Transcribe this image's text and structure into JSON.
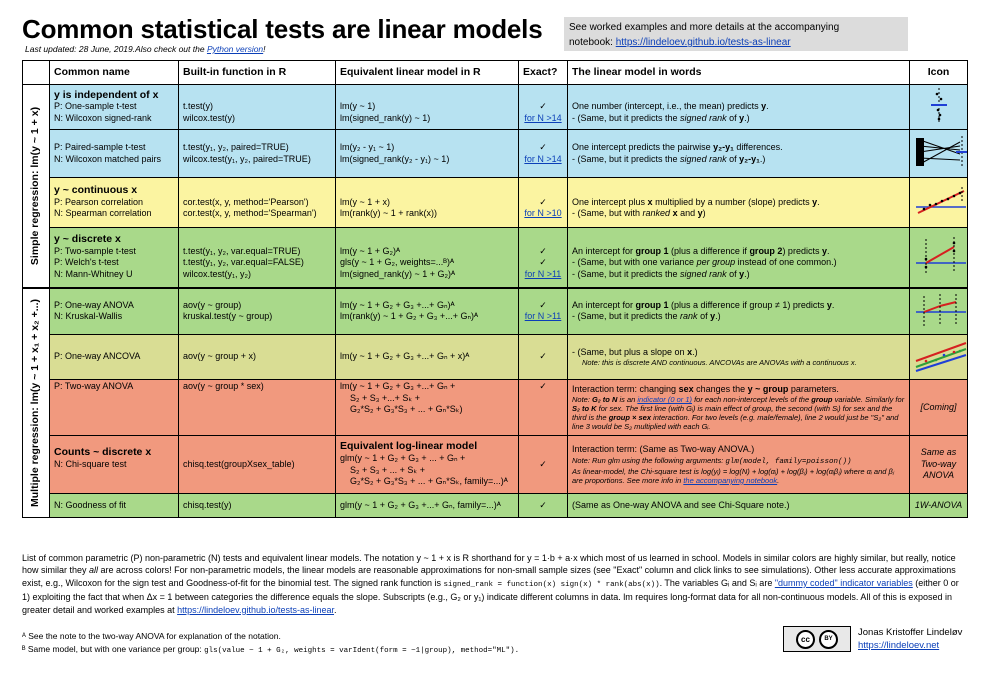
{
  "header": {
    "title": "Common statistical tests are linear models",
    "updated": "Last updated: 28 June, 2019.Also check out the ",
    "python_link": "Python version",
    "updated_end": "!",
    "box_line1": "See worked examples and more details at the accompanying",
    "box_line2": "notebook: ",
    "box_link": "https://lindeloev.github.io/tests-as-linear"
  },
  "columns": {
    "name": "Common name",
    "builtin": "Built-in function in R",
    "equiv": "Equivalent linear model in R",
    "exact": "Exact?",
    "words": "The linear model in words",
    "icon": "Icon"
  },
  "side": {
    "simple": "Simple regression: lm(y ~ 1 + x)",
    "multiple": "Multiple regression: lm(y ~ 1 + x₁ + x₂ +...)"
  },
  "rows": {
    "r1": {
      "title": "y is independent of x",
      "n1": "P: One-sample t-test",
      "n2": "N: Wilcoxon signed-rank",
      "f1": "t.test(y)",
      "f2": "wilcox.test(y)",
      "m1": "lm(y ~ 1)",
      "m2": "lm(signed_rank(y) ~ 1)",
      "e1": "✓",
      "e2": "for N >14",
      "w1a": "One number (intercept, i.e., the mean) predicts ",
      "w1b": "y",
      "w1c": ".",
      "w2a": "- (Same, but it predicts the ",
      "w2b": "signed rank",
      "w2c": " of ",
      "w2d": "y",
      "w2e": ".)"
    },
    "r2": {
      "n1": "P: Paired-sample t-test",
      "n2": "N: Wilcoxon matched pairs",
      "f1": "t.test(y₁, y₂, paired=TRUE)",
      "f2": "wilcox.test(y₁, y₂, paired=TRUE)",
      "m1": "lm(y₂ - y₁ ~ 1)",
      "m2": "lm(signed_rank(y₂ - y₁) ~ 1)",
      "e1": "✓",
      "e2": "for N >14",
      "w1a": "One intercept predicts the pairwise ",
      "w1b": "y₂-y₁",
      "w1c": " differences.",
      "w2a": "- (Same, but it predicts the ",
      "w2b": "signed rank",
      "w2c": " of ",
      "w2d": "y₂-y₁",
      "w2e": ".)"
    },
    "r3": {
      "title": "y ~ continuous x",
      "n1": "P: Pearson correlation",
      "n2": "N: Spearman correlation",
      "f1": "cor.test(x, y, method='Pearson')",
      "f2": "cor.test(x, y, method='Spearman')",
      "m1": "lm(y ~ 1 + x)",
      "m2": "lm(rank(y) ~ 1 + rank(x))",
      "e1": "✓",
      "e2": "for N >10",
      "w1a": "One intercept plus ",
      "w1b": "x",
      "w1c": " multiplied by a number (slope) predicts ",
      "w1d": "y",
      "w1e": ".",
      "w2a": "- (Same, but with ",
      "w2b": "ranked",
      "w2c": " x",
      "w2d": " and ",
      "w2e": "y",
      "w2f": ")"
    },
    "r4": {
      "title": "y ~ discrete x",
      "n1": "P: Two-sample t-test",
      "n2": "P: Welch's t-test",
      "n3": "N: Mann-Whitney U",
      "f1": "t.test(y₁, y₂, var.equal=TRUE)",
      "f2": "t.test(y₁, y₂, var.equal=FALSE)",
      "f3": "wilcox.test(y₁, y₂)",
      "m1": "lm(y ~ 1 + G₂)ᴬ",
      "m2": "gls(y ~ 1 + G₂, weights=...ᴮ)ᴬ",
      "m3": "lm(signed_rank(y) ~ 1 + G₂)ᴬ",
      "e1": "✓",
      "e2": "✓",
      "e3": "for N >11",
      "w1a": "An intercept for ",
      "w1b": "group 1",
      "w1c": " (plus a difference if ",
      "w1d": "group 2",
      "w1e": ") predicts ",
      "w1f": "y",
      "w1g": ".",
      "w2a": "- (Same, but with one variance ",
      "w2b": "per group",
      "w2c": " instead of one common.)",
      "w3a": "- (Same, but it predicts the ",
      "w3b": "signed rank",
      "w3c": " of ",
      "w3d": "y",
      "w3e": ".)"
    },
    "r5": {
      "n1": "P: One-way ANOVA",
      "n2": "N: Kruskal-Wallis",
      "f1": "aov(y ~ group)",
      "f2": "kruskal.test(y ~ group)",
      "m1": "lm(y ~ 1 + G₂ + G₃ +...+ Gₙ)ᴬ",
      "m2": "lm(rank(y) ~ 1 + G₂ + G₃ +...+ Gₙ)ᴬ",
      "e1": "✓",
      "e2": "for N >11",
      "w1a": "An intercept for ",
      "w1b": "group 1",
      "w1c": " (plus a difference if group ≠ 1) predicts ",
      "w1d": "y",
      "w1e": ".",
      "w2a": "- (Same, but it predicts the ",
      "w2b": "rank",
      "w2c": " of ",
      "w2d": "y",
      "w2e": ".)"
    },
    "r6": {
      "n1": "P: One-way ANCOVA",
      "f1": "aov(y ~ group + x)",
      "m1": "lm(y ~ 1 + G₂ + G₃ +...+ Gₙ + x)ᴬ",
      "e1": "✓",
      "w1a": "- (Same, but plus a slope on ",
      "w1b": "x",
      "w1c": ".)",
      "note": "Note: this is discrete AND continuous. ANCOVAs are ANOVAs with a continuous x."
    },
    "r7": {
      "n1": "P: Two-way ANOVA",
      "f1": "aov(y ~ group * sex)",
      "m1": "lm(y ~ 1 + G₂ + G₃ +...+ Gₙ +",
      "m2": "S₂ + S₃ +...+ Sₖ +",
      "m3": "G₂*S₂ + G₃*S₃ + ... + Gₙ*Sₖ)",
      "e1": "✓",
      "w1a": "Interaction term: changing ",
      "w1b": "sex",
      "w1c": " changes the ",
      "w1d": "y ~ group",
      "w1e": " parameters.",
      "na": "Note: ",
      "nb": "G₂ to N",
      "nc": " is an ",
      "nd": "indicator (0 or 1)",
      "ne": " for each non-intercept levels of the ",
      "nf": "group",
      "ng": " variable. Similarly for ",
      "nh": "S₂ to K",
      "ni": " for sex. The first line (with Gᵢ) is main effect of group, the second (with Sᵢ) for sex and the third is the ",
      "nj": "group × sex",
      "nk": " interaction. For two levels (e.g. male/female), line 2 would just be \"S₂\" and line 3 would be S₂ multiplied with each Gᵢ.",
      "icon": "[Coming]"
    },
    "r8": {
      "title": "Counts ~ discrete x",
      "n1": "N: Chi-square test",
      "f1": "chisq.test(groupXsex_table)",
      "mt": "Equivalent log-linear model",
      "m1": "glm(y ~ 1 + G₂ + G₃ + ... + Gₙ +",
      "m2": "S₂ + S₃ + ... + Sₖ +",
      "m3": "G₂*S₂ + G₃*S₃ + ... + Gₙ*Sₖ, family=...)ᴬ",
      "e1": "✓",
      "w1": "Interaction term: (Same as Two-way ANOVA.)",
      "na": "Note: Run glm using the following arguments: ",
      "ncode": "glm(model, family=poisson())",
      "nb": "As linear-model, the Chi-square test is log(yᵢ) = log(N) + log(αᵢ) + log(βⱼ) + log(αᵢβⱼ) where αᵢ and βⱼ are proportions. See more info in ",
      "nlink": "the accompanying notebook",
      "nend": ".",
      "icon": "Same as Two-way ANOVA"
    },
    "r9": {
      "n1": "N: Goodness of fit",
      "f1": "chisq.test(y)",
      "m1": "glm(y ~ 1 + G₂ + G₃ +...+ Gₙ, family=...)ᴬ",
      "e1": "✓",
      "w1": "(Same as One-way ANOVA and see Chi-Square note.)",
      "icon": "1W-ANOVA"
    }
  },
  "footer": {
    "p1": "List of common parametric (P) non-parametric (N) tests and equivalent linear models. The notation y ~ 1 + x is R shorthand for y = 1·b + a·x which most of us learned in school. Models in similar colors are highly similar, but really, notice how similar they ",
    "p1_all": "all",
    "p2": " are across colors! For non-parametric models, the linear models are reasonable approximations for non-small sample sizes (see \"Exact\" column and click links to see simulations). Other less accurate approximations exist, e.g., Wilcoxon for the sign test and Goodness-of-fit for the binomial test. The signed rank function is ",
    "code": "signed_rank = function(x) sign(x) * rank(abs(x))",
    "p3": ". The variables Gᵢ and Sᵢ are ",
    "link1": "\"dummy coded\" indicator variables",
    "p4": " (either 0 or 1) exploiting the fact that when Δx = 1 between categories the difference equals the slope. Subscripts (e.g., G₂ or y₁) indicate different columns in data. lm requires long-format data for all non-continuous models. All of this is exposed in greater detail and worked examples at ",
    "link2": "https://lindeloev.github.io/tests-as-linear",
    "p5": "."
  },
  "notes": {
    "a": "ᴬ See the note to the two-way ANOVA for explanation of the notation.",
    "b": "ᴮ Same model, but with one variance per group: ",
    "bcode": "gls(value ~ 1 + G₂, weights = varIdent(form = ~1|group), method=\"ML\")."
  },
  "license": {
    "cc": "cc",
    "by": "BY"
  },
  "author": {
    "name": "Jonas Kristoffer Lindeløv",
    "link": "https://lindeloev.net"
  },
  "colors": {
    "blue": "#b7e2f1",
    "yellow": "#fbf4a1",
    "green": "#a9d98a",
    "olive": "#d9dd94",
    "orange": "#f1997e"
  }
}
